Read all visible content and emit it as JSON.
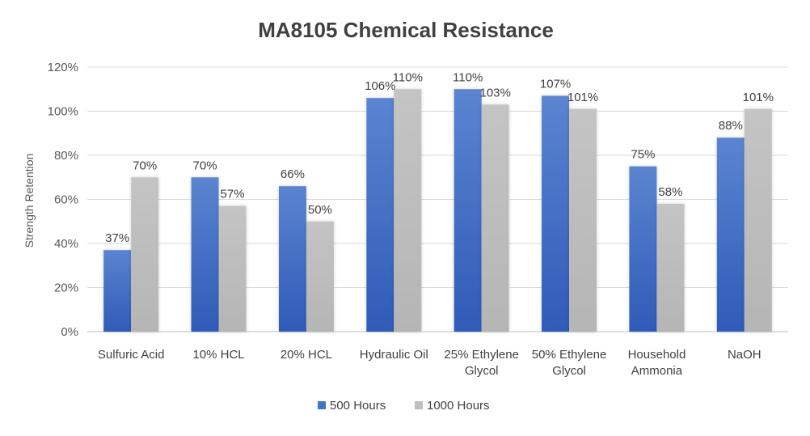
{
  "chart_data": {
    "type": "bar",
    "title": "MA8105 Chemical Resistance",
    "xlabel": "",
    "ylabel": "Strength Retention",
    "ylim": [
      0,
      120
    ],
    "yticks": [
      "0%",
      "20%",
      "40%",
      "60%",
      "80%",
      "100%",
      "120%"
    ],
    "categories": [
      [
        "Sulfuric Acid"
      ],
      [
        "10% HCL"
      ],
      [
        "20% HCL"
      ],
      [
        "Hydraulic Oil"
      ],
      [
        "25% Ethylene",
        "Glycol"
      ],
      [
        "50% Ethylene",
        "Glycol"
      ],
      [
        "Household",
        "Ammonia"
      ],
      [
        "NaOH"
      ]
    ],
    "series": [
      {
        "name": "500 Hours",
        "color": "#4472C4",
        "values": [
          37,
          70,
          66,
          106,
          110,
          107,
          75,
          88
        ],
        "labels": [
          "37%",
          "70%",
          "66%",
          "106%",
          "110%",
          "107%",
          "75%",
          "88%"
        ]
      },
      {
        "name": "1000 Hours",
        "color": "#BFBFBF",
        "values": [
          70,
          57,
          50,
          110,
          103,
          101,
          58,
          101
        ],
        "labels": [
          "70%",
          "57%",
          "50%",
          "110%",
          "103%",
          "101%",
          "58%",
          "101%"
        ]
      }
    ],
    "grid": true,
    "legend_position": "bottom"
  }
}
